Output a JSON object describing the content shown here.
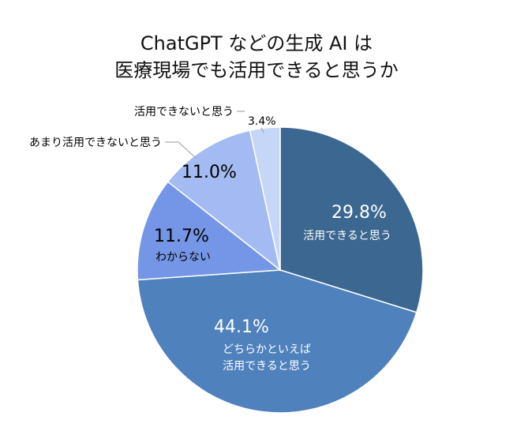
{
  "chart_data": {
    "type": "pie",
    "title_lines": [
      "ChatGPT などの生成 AI は",
      "医療現場でも活用できると思うか"
    ],
    "slices": [
      {
        "label": "活用できると思う",
        "value": 29.8,
        "display": "29.8%",
        "color": "#3b6791",
        "text_color": "#ffffff"
      },
      {
        "label": "どちらかといえば\n活用できると思う",
        "value": 44.1,
        "display": "44.1%",
        "color": "#4f81bd",
        "text_color": "#ffffff"
      },
      {
        "label": "わからない",
        "value": 11.7,
        "display": "11.7%",
        "color": "#7596e6",
        "text_color": "#000000"
      },
      {
        "label": "あまり活用できないと思う",
        "value": 11.0,
        "display": "11.0%",
        "color": "#a3bbf2",
        "text_color": "#000000"
      },
      {
        "label": "活用できないと思う",
        "value": 3.4,
        "display": "3.4%",
        "color": "#c6d6f7",
        "text_color": "#000000"
      }
    ]
  }
}
